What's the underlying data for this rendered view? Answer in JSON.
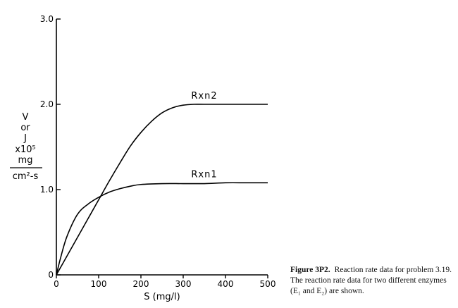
{
  "chart_data": {
    "type": "line",
    "xlabel": "S (mg/l)",
    "ylabel_lines": [
      "V",
      "or",
      "J",
      "x10⁵",
      "mg"
    ],
    "ylabel_denominator": "cm²-s",
    "xlim": [
      0,
      500
    ],
    "ylim": [
      0,
      3.0
    ],
    "x_ticks": [
      "0",
      "100",
      "200",
      "300",
      "400",
      "500"
    ],
    "y_ticks": [
      "0",
      "1.0",
      "2.0",
      "3.0"
    ],
    "grid": false,
    "series": [
      {
        "name": "Rxn2",
        "x": [
          0,
          25,
          50,
          75,
          100,
          125,
          150,
          175,
          200,
          225,
          250,
          275,
          300,
          325,
          350,
          400,
          450,
          500
        ],
        "y": [
          0,
          0.22,
          0.44,
          0.66,
          0.88,
          1.1,
          1.31,
          1.51,
          1.67,
          1.8,
          1.9,
          1.96,
          1.99,
          2.0,
          2.0,
          2.0,
          2.0,
          2.0
        ]
      },
      {
        "name": "Rxn1",
        "x": [
          0,
          10,
          25,
          50,
          75,
          100,
          125,
          150,
          175,
          200,
          250,
          300,
          350,
          400,
          450,
          500
        ],
        "y": [
          0,
          0.2,
          0.45,
          0.71,
          0.83,
          0.91,
          0.97,
          1.01,
          1.04,
          1.06,
          1.07,
          1.07,
          1.07,
          1.08,
          1.08,
          1.08
        ]
      }
    ]
  },
  "caption": {
    "figure_label": "Figure 3P2.",
    "text": "Reaction rate data for problem 3.19. The reaction rate data for two different enzymes (E₁ and E₂) are shown."
  }
}
